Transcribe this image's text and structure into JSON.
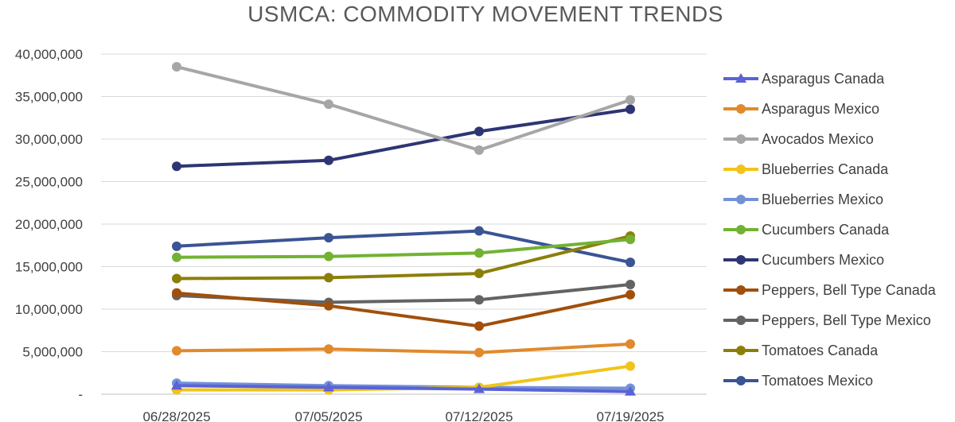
{
  "chart_data": {
    "type": "line",
    "title": "USMCA: COMMODITY MOVEMENT TRENDS",
    "xlabel": "",
    "ylabel": "",
    "categories": [
      "06/28/2025",
      "07/05/2025",
      "07/12/2025",
      "07/19/2025"
    ],
    "ylim": [
      0,
      40000000
    ],
    "yticks": [
      0,
      5000000,
      10000000,
      15000000,
      20000000,
      25000000,
      30000000,
      35000000,
      40000000
    ],
    "ytick_labels": [
      "-",
      "5,000,000",
      "10,000,000",
      "15,000,000",
      "20,000,000",
      "25,000,000",
      "30,000,000",
      "35,000,000",
      "40,000,000"
    ],
    "grid": "horizontal",
    "legend_position": "right",
    "series": [
      {
        "name": "Asparagus Canada",
        "color": "#5b63d6",
        "marker": "triangle",
        "values": [
          1000000,
          800000,
          600000,
          300000
        ]
      },
      {
        "name": "Asparagus Mexico",
        "color": "#e08a2c",
        "marker": "circle",
        "values": [
          5100000,
          5300000,
          4900000,
          5900000
        ]
      },
      {
        "name": "Avocados Mexico",
        "color": "#a6a6a6",
        "marker": "circle",
        "values": [
          38500000,
          34100000,
          28700000,
          34600000
        ]
      },
      {
        "name": "Blueberries Canada",
        "color": "#f0c419",
        "marker": "circle",
        "values": [
          500000,
          500000,
          800000,
          3300000
        ]
      },
      {
        "name": "Blueberries Mexico",
        "color": "#7291d8",
        "marker": "circle",
        "values": [
          1300000,
          1000000,
          800000,
          700000
        ]
      },
      {
        "name": "Cucumbers Canada",
        "color": "#72b233",
        "marker": "circle",
        "values": [
          16100000,
          16200000,
          16600000,
          18200000
        ]
      },
      {
        "name": "Cucumbers Mexico",
        "color": "#2e3574",
        "marker": "circle",
        "values": [
          26800000,
          27500000,
          30900000,
          33500000
        ]
      },
      {
        "name": "Peppers, Bell Type Canada",
        "color": "#a14f0b",
        "marker": "circle",
        "values": [
          11900000,
          10400000,
          8000000,
          11700000
        ]
      },
      {
        "name": "Peppers, Bell Type Mexico",
        "color": "#636363",
        "marker": "circle",
        "values": [
          11600000,
          10800000,
          11100000,
          12900000
        ]
      },
      {
        "name": "Tomatoes Canada",
        "color": "#8c7f09",
        "marker": "circle",
        "values": [
          13600000,
          13700000,
          14200000,
          18600000
        ]
      },
      {
        "name": "Tomatoes Mexico",
        "color": "#3a5494",
        "marker": "circle",
        "values": [
          17400000,
          18400000,
          19200000,
          15500000
        ]
      }
    ]
  }
}
